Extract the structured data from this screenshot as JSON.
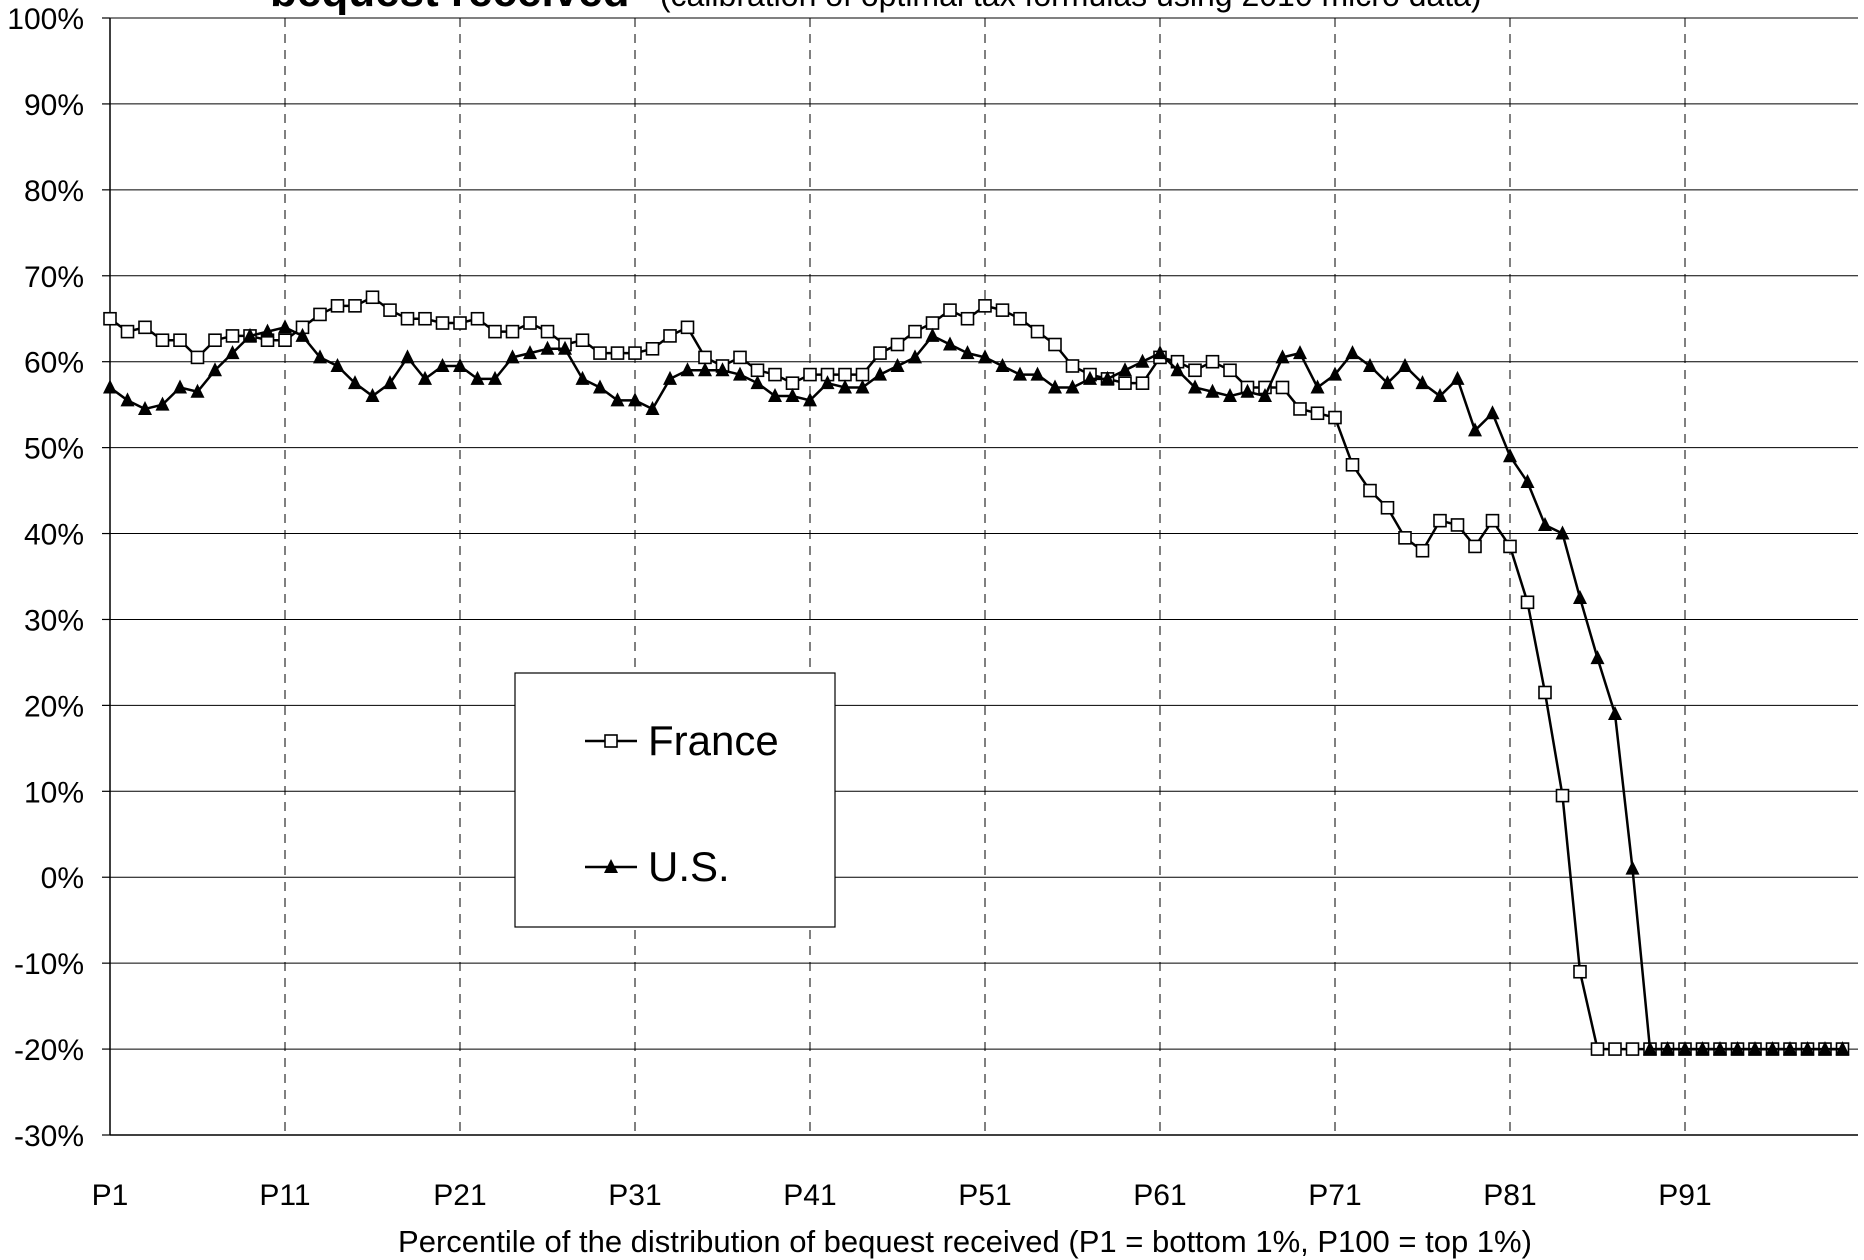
{
  "chart_data": {
    "type": "line",
    "title": "bequest received",
    "subtitle": "(calibration of optimal tax formulas using 2010 micro data)",
    "xlabel": "Percentile of the distribution of bequest received (P1 = bottom 1%, P100 = top 1%)",
    "ylabel": "",
    "ylim": [
      -30,
      100
    ],
    "yticks": [
      -30,
      -20,
      -10,
      0,
      10,
      20,
      30,
      40,
      50,
      60,
      70,
      80,
      90,
      100
    ],
    "ytick_labels": [
      "-30%",
      "-20%",
      "-10%",
      "0%",
      "10%",
      "20%",
      "30%",
      "40%",
      "50%",
      "60%",
      "70%",
      "80%",
      "90%",
      "100%"
    ],
    "xlim": [
      1,
      100
    ],
    "xticks": [
      1,
      11,
      21,
      31,
      41,
      51,
      61,
      71,
      81,
      91
    ],
    "xtick_labels": [
      "P1",
      "P11",
      "P21",
      "P31",
      "P41",
      "P51",
      "P61",
      "P71",
      "P81",
      "P91"
    ],
    "grid": {
      "horizontal": "solid",
      "vertical": "dashed"
    },
    "legend": {
      "position": "lower-left",
      "entries": [
        "France",
        "U.S."
      ]
    },
    "x": [
      1,
      2,
      3,
      4,
      5,
      6,
      7,
      8,
      9,
      10,
      11,
      12,
      13,
      14,
      15,
      16,
      17,
      18,
      19,
      20,
      21,
      22,
      23,
      24,
      25,
      26,
      27,
      28,
      29,
      30,
      31,
      32,
      33,
      34,
      35,
      36,
      37,
      38,
      39,
      40,
      41,
      42,
      43,
      44,
      45,
      46,
      47,
      48,
      49,
      50,
      51,
      52,
      53,
      54,
      55,
      56,
      57,
      58,
      59,
      60,
      61,
      62,
      63,
      64,
      65,
      66,
      67,
      68,
      69,
      70,
      71,
      72,
      73,
      74,
      75,
      76,
      77,
      78,
      79,
      80,
      81,
      82,
      83,
      84,
      85,
      86,
      87,
      88,
      89,
      90,
      91,
      92,
      93,
      94,
      95,
      96,
      97,
      98,
      99,
      100
    ],
    "series": [
      {
        "name": "France",
        "marker": "open-square",
        "color": "#000000",
        "values": [
          65,
          63.5,
          64,
          62.5,
          62.5,
          60.5,
          62.5,
          63,
          63,
          62.5,
          62.5,
          64,
          65.5,
          66.5,
          66.5,
          67.5,
          66,
          65,
          65,
          64.5,
          64.5,
          65,
          63.5,
          63.5,
          64.5,
          63.5,
          62,
          62.5,
          61,
          61,
          61,
          61.5,
          63,
          64,
          60.5,
          59.5,
          60.5,
          59,
          58.5,
          57.5,
          58.5,
          58.5,
          58.5,
          58.5,
          61,
          62,
          63.5,
          64.5,
          66,
          65,
          66.5,
          66,
          65,
          63.5,
          62,
          59.5,
          58.5,
          58,
          57.5,
          57.5,
          60.5,
          60,
          59,
          60,
          59,
          57,
          57,
          57,
          54.5,
          54,
          53.5,
          48,
          45,
          43,
          39.5,
          38,
          41.5,
          41,
          38.5,
          41.5,
          38.5,
          32,
          21.5,
          9.5,
          -11,
          -20,
          -20,
          -20,
          -20,
          -20,
          -20,
          -20,
          -20,
          -20,
          -20,
          -20,
          -20,
          -20,
          -20,
          -20
        ]
      },
      {
        "name": "U.S.",
        "marker": "filled-triangle",
        "color": "#000000",
        "values": [
          57,
          55.5,
          54.5,
          55,
          57,
          56.5,
          59,
          61,
          63,
          63.5,
          64,
          63,
          60.5,
          59.5,
          57.5,
          56,
          57.5,
          60.5,
          58,
          59.5,
          59.5,
          58,
          58,
          60.5,
          61,
          61.5,
          61.5,
          58,
          57,
          55.5,
          55.5,
          54.5,
          58,
          59,
          59,
          59,
          58.5,
          57.5,
          56,
          56,
          55.5,
          57.5,
          57,
          57,
          58.5,
          59.5,
          60.5,
          63,
          62,
          61,
          60.5,
          59.5,
          58.5,
          58.5,
          57,
          57,
          58,
          58,
          59,
          60,
          61,
          59,
          57,
          56.5,
          56,
          56.5,
          56,
          60.5,
          61,
          57,
          58.5,
          61,
          59.5,
          57.5,
          59.5,
          57.5,
          56,
          58,
          52,
          54,
          49,
          46,
          41,
          40,
          32.5,
          25.5,
          19,
          1,
          -20,
          -20,
          -20,
          -20,
          -20,
          -20,
          -20,
          -20,
          -20,
          -20,
          -20,
          -20
        ]
      }
    ]
  }
}
